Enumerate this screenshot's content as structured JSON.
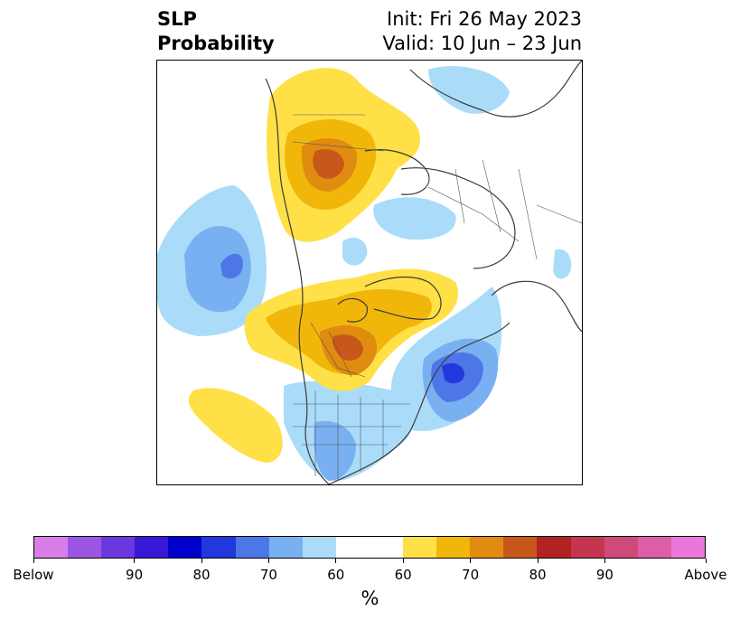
{
  "title": {
    "left_line1": "SLP",
    "left_line2": "Probability",
    "right_line1": "Init: Fri 26 May 2023",
    "right_line2": "Valid: 10 Jun – 23 Jun"
  },
  "colorbar": {
    "units": "%",
    "colors": [
      "#d77ee9",
      "#9c55e3",
      "#6a38de",
      "#3917d6",
      "#0000cd",
      "#2237dc",
      "#4d77e6",
      "#79b0f2",
      "#aadcfa",
      "#ffffff",
      "#ffffff",
      "#ffe046",
      "#f1b60a",
      "#e08c10",
      "#c8571a",
      "#b22222",
      "#c43550",
      "#cf4a7a",
      "#dc5ea6",
      "#e978da"
    ],
    "tick_labels": [
      "Below",
      "90",
      "80",
      "70",
      "60",
      "60",
      "70",
      "80",
      "90",
      "Above"
    ]
  },
  "map": {
    "projection": "polar-stereographic-north-america",
    "below_normal_color": "#aadcfa",
    "above_normal_color": "#ffe046"
  }
}
